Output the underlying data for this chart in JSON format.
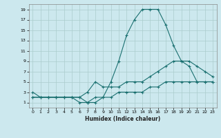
{
  "xlabel": "Humidex (Indice chaleur)",
  "bg_color": "#cce8ee",
  "grid_color": "#aacccc",
  "line_color": "#1a7070",
  "xlim": [
    -0.5,
    23.5
  ],
  "ylim": [
    0,
    20
  ],
  "xticks": [
    0,
    1,
    2,
    3,
    4,
    5,
    6,
    7,
    8,
    9,
    10,
    11,
    12,
    13,
    14,
    15,
    16,
    17,
    18,
    19,
    20,
    21,
    22,
    23
  ],
  "yticks": [
    1,
    3,
    5,
    7,
    9,
    11,
    13,
    15,
    17,
    19
  ],
  "line1_x": [
    0,
    1,
    2,
    3,
    4,
    5,
    6,
    7,
    8,
    9,
    10,
    11,
    12,
    13,
    14,
    15,
    16,
    17,
    18,
    19,
    20,
    21,
    22,
    23
  ],
  "line1_y": [
    3,
    2,
    2,
    2,
    2,
    2,
    1,
    1,
    1,
    2,
    5,
    9,
    14,
    17,
    19,
    19,
    19,
    16,
    12,
    9,
    8,
    5,
    5,
    5
  ],
  "line2_x": [
    0,
    1,
    2,
    3,
    4,
    5,
    6,
    7,
    8,
    9,
    10,
    11,
    12,
    13,
    14,
    15,
    16,
    17,
    18,
    19,
    20,
    21,
    22,
    23
  ],
  "line2_y": [
    2,
    2,
    2,
    2,
    2,
    2,
    2,
    3,
    5,
    4,
    4,
    4,
    5,
    5,
    5,
    6,
    7,
    8,
    9,
    9,
    9,
    8,
    7,
    6
  ],
  "line3_x": [
    0,
    1,
    2,
    3,
    4,
    5,
    6,
    7,
    8,
    9,
    10,
    11,
    12,
    13,
    14,
    15,
    16,
    17,
    18,
    19,
    20,
    21,
    22,
    23
  ],
  "line3_y": [
    2,
    2,
    2,
    2,
    2,
    2,
    2,
    1,
    2,
    2,
    2,
    3,
    3,
    3,
    3,
    4,
    4,
    5,
    5,
    5,
    5,
    5,
    5,
    5
  ]
}
